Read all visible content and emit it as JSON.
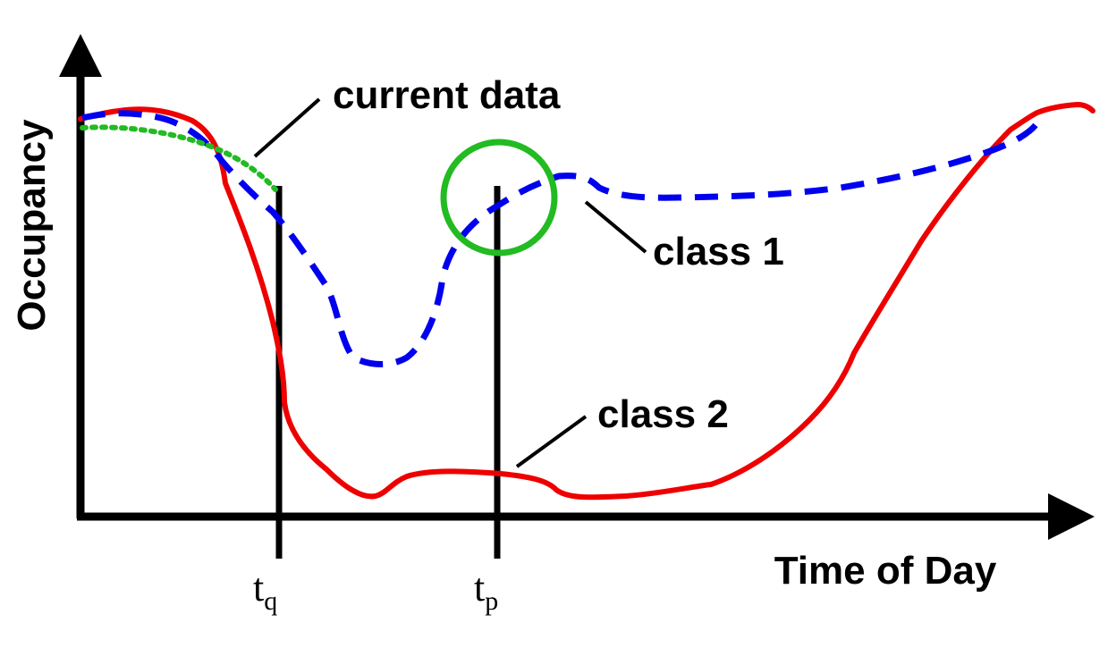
{
  "axes": {
    "y_label": "Occupancy",
    "x_label": "Time of Day"
  },
  "markers": {
    "tq": {
      "base": "t",
      "sub": "q"
    },
    "tp": {
      "base": "t",
      "sub": "p"
    }
  },
  "annotations": {
    "current_data": "current data",
    "class1": "class 1",
    "class2": "class 2"
  },
  "colors": {
    "class1": "#0000ee",
    "class2": "#ee0000",
    "current_data": "#22bb22",
    "highlight_circle": "#22bb22",
    "axes": "#000000"
  }
}
